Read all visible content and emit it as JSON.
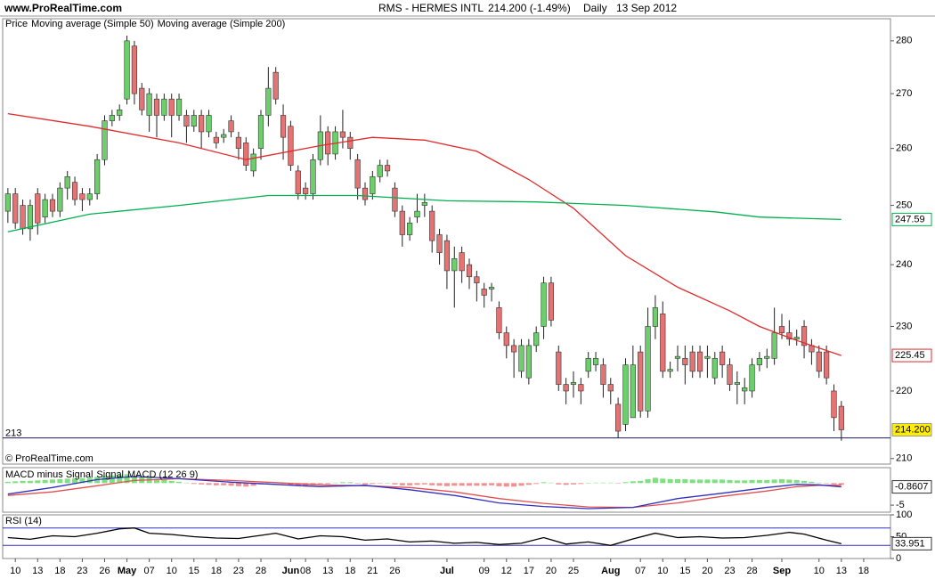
{
  "header": {
    "site": "www.ProRealTime.com",
    "copyright": "© ProRealTime.com"
  },
  "chart_data": [
    {
      "type": "candlestick",
      "title": "RMS - HERMES INTL",
      "subtitle": "214.200 (-1.49%)",
      "period": "Daily",
      "date": "13 Sep 2012",
      "xlim": [
        -0.7,
        118.6
      ],
      "xticks": [
        {
          "value": 1,
          "label": "10"
        },
        {
          "value": 4,
          "label": "13"
        },
        {
          "value": 7,
          "label": "18"
        },
        {
          "value": 10,
          "label": "23"
        },
        {
          "value": 13,
          "label": "26"
        },
        {
          "value": 16,
          "label": "May"
        },
        {
          "value": 19,
          "label": "07"
        },
        {
          "value": 22,
          "label": "10"
        },
        {
          "value": 25,
          "label": "15"
        },
        {
          "value": 28,
          "label": "18"
        },
        {
          "value": 31,
          "label": "23"
        },
        {
          "value": 34,
          "label": "28"
        },
        {
          "value": 38,
          "label": "Jun"
        },
        {
          "value": 40,
          "label": "08"
        },
        {
          "value": 43,
          "label": "13"
        },
        {
          "value": 46,
          "label": "18"
        },
        {
          "value": 49,
          "label": "21"
        },
        {
          "value": 52,
          "label": "26"
        },
        {
          "value": 59,
          "label": "Jul"
        },
        {
          "value": 64,
          "label": "09"
        },
        {
          "value": 67,
          "label": "12"
        },
        {
          "value": 70,
          "label": "17"
        },
        {
          "value": 73,
          "label": "20"
        },
        {
          "value": 76,
          "label": "25"
        },
        {
          "value": 81,
          "label": "Aug"
        },
        {
          "value": 85,
          "label": "07"
        },
        {
          "value": 88,
          "label": "10"
        },
        {
          "value": 91,
          "label": "15"
        },
        {
          "value": 94,
          "label": "20"
        },
        {
          "value": 97,
          "label": "23"
        },
        {
          "value": 100,
          "label": "28"
        },
        {
          "value": 104,
          "label": "Sep"
        },
        {
          "value": 109,
          "label": "10"
        },
        {
          "value": 112,
          "label": "13"
        },
        {
          "value": 115,
          "label": "18"
        }
      ],
      "ylim": [
        209.2,
        284.3
      ],
      "log_scale": true,
      "yticks": [
        210,
        220,
        230,
        240,
        250,
        260,
        270,
        280
      ],
      "hlines": [
        213
      ],
      "series": [
        {
          "name": "Price",
          "up_color": "#6ccf6c",
          "down_color": "#e57373",
          "last_label": "214.200",
          "last_box_color": "#ffee00",
          "open": [
            249,
            252,
            250,
            246,
            252,
            248,
            251,
            249,
            253,
            254,
            252,
            251,
            252,
            258,
            265,
            266,
            269,
            279,
            271,
            266,
            269,
            266,
            269,
            266,
            266,
            264,
            266,
            263,
            262,
            262,
            265,
            262,
            261,
            256,
            260,
            266,
            274,
            266,
            264,
            256,
            253,
            252,
            258,
            263,
            259,
            263,
            262,
            258,
            253,
            252,
            255,
            257,
            253,
            249,
            245,
            248,
            250,
            249,
            245,
            244,
            239,
            242,
            240,
            238,
            236,
            236,
            233,
            229,
            227,
            223,
            222,
            227,
            230,
            237,
            226,
            221,
            221,
            221,
            223,
            224,
            224,
            221,
            218,
            215,
            216,
            226,
            217,
            230,
            232,
            223,
            225,
            225,
            226,
            226,
            225,
            222,
            226,
            224,
            221,
            220,
            220,
            224,
            225,
            225,
            230,
            229,
            228,
            230,
            227,
            226,
            226,
            220,
            217.7
          ],
          "high": [
            253,
            253,
            251,
            251,
            253,
            252,
            252,
            254,
            256,
            255,
            253,
            253,
            259,
            266,
            267,
            268,
            281,
            280,
            272,
            271,
            270,
            270,
            270,
            270,
            267,
            267,
            267,
            267,
            263,
            263.5,
            266,
            263,
            262,
            260,
            267,
            275,
            275,
            268,
            265,
            257,
            254,
            259,
            266,
            264,
            264,
            267,
            263,
            259,
            254,
            256,
            258,
            258,
            254,
            250,
            248,
            252,
            252,
            250,
            246,
            245,
            243,
            243,
            241,
            239,
            237,
            237,
            234,
            230,
            228,
            228,
            228,
            230,
            238,
            238,
            227,
            222,
            223,
            222,
            226,
            226,
            225,
            222,
            219,
            225,
            227,
            227,
            233,
            235,
            234,
            224.5,
            227,
            227,
            227,
            227,
            227,
            226,
            227,
            225,
            223,
            222,
            225,
            226,
            226.5,
            233,
            232,
            231,
            229.5,
            231,
            228,
            227,
            227,
            221,
            218.5
          ],
          "low": [
            247,
            246,
            245,
            244,
            245,
            247,
            248,
            248,
            251,
            250,
            249,
            250,
            251,
            257,
            264,
            265,
            268,
            268,
            266,
            263,
            262,
            265,
            262,
            265,
            261,
            263,
            260,
            262,
            260,
            261,
            262,
            258,
            256,
            255,
            258,
            264,
            268,
            258,
            256,
            251,
            251,
            251,
            257,
            257,
            258,
            260,
            258,
            251,
            250,
            251,
            254,
            255,
            248,
            243,
            244,
            247,
            248,
            242,
            240,
            236,
            233,
            237,
            236,
            234,
            233,
            234,
            228,
            225,
            222,
            222,
            221,
            226,
            228,
            230,
            220,
            218,
            219,
            218,
            222,
            223,
            219,
            218,
            213,
            214,
            216,
            216,
            216,
            228,
            222,
            222,
            223,
            221,
            222,
            222,
            222,
            221,
            222,
            220,
            218,
            218,
            219,
            223,
            223.5,
            224,
            228,
            227,
            227,
            225,
            224,
            222,
            221,
            214,
            212.6
          ],
          "close": [
            252,
            247,
            246,
            250,
            247,
            251,
            249,
            253,
            255,
            251,
            251,
            252,
            258,
            265,
            266,
            267,
            280,
            270,
            267,
            270,
            266,
            269,
            266,
            269,
            264,
            266,
            263,
            266,
            261,
            262.5,
            263,
            260,
            257,
            259,
            266,
            271,
            269,
            262,
            257,
            252,
            252,
            258,
            263,
            259,
            263,
            262,
            260,
            253,
            251,
            255,
            257,
            256,
            249,
            245,
            247,
            249,
            250.5,
            244,
            242,
            239,
            241,
            239,
            238,
            237,
            235,
            236.3,
            229,
            227,
            226,
            227,
            227,
            229,
            237,
            231,
            221,
            220,
            221.3,
            220,
            225,
            225,
            221,
            220,
            214,
            224,
            224,
            217,
            230,
            233,
            223,
            223.3,
            225.3,
            224,
            223,
            223,
            225.3,
            225,
            224,
            221,
            221.3,
            220.5,
            224,
            225,
            225.3,
            229,
            229,
            228,
            228.3,
            227,
            226,
            223,
            222,
            216,
            214.2
          ]
        },
        {
          "name": "Moving average (Simple 50)",
          "color": "#e02a2a",
          "last_box": true,
          "x": [
            0,
            11,
            23,
            32,
            42,
            49,
            56,
            63,
            70,
            76,
            83,
            90,
            97,
            101,
            106,
            112
          ],
          "values": [
            266.3,
            264,
            261,
            258,
            260.5,
            262,
            261.5,
            259.5,
            254.5,
            249.5,
            241.5,
            236.3,
            232.5,
            230,
            227.8,
            225.45
          ]
        },
        {
          "name": "Moving average (Simple 200)",
          "color": "#00b050",
          "last_box": true,
          "x": [
            0,
            11,
            23,
            35,
            47,
            59,
            71,
            83,
            95,
            101,
            112
          ],
          "values": [
            245.5,
            248.5,
            250,
            251.7,
            251.7,
            250.8,
            250.6,
            250,
            248.9,
            248,
            247.59
          ]
        }
      ]
    },
    {
      "type": "macd",
      "ylim": [
        -6.6,
        3.5
      ],
      "yticks": [
        -5
      ],
      "series": [
        {
          "name": "MACD minus Signal",
          "type": "bar",
          "color": "#e07070",
          "up_color": "#7ee07e",
          "down_color": "#f09090",
          "values": [
            0.3,
            0.4,
            0.5,
            0.5,
            0.6,
            0.7,
            0.8,
            0.9,
            1.0,
            1.1,
            1.1,
            1.2,
            1.4,
            1.6,
            1.7,
            1.8,
            2.0,
            1.6,
            1.3,
            1.2,
            0.9,
            0.8,
            0.5,
            0.3,
            0.1,
            -0.2,
            -0.3,
            -0.4,
            -0.5,
            -0.5,
            -0.6,
            -0.7,
            -0.8,
            -0.6,
            -0.3,
            0.1,
            0.2,
            -0.1,
            -0.4,
            -0.7,
            -0.8,
            -0.5,
            -0.2,
            -0.2,
            0.1,
            0.2,
            0.2,
            -0.1,
            -0.3,
            -0.2,
            -0.1,
            0,
            -0.3,
            -0.5,
            -0.5,
            -0.4,
            -0.3,
            -0.5,
            -0.6,
            -0.7,
            -0.6,
            -0.6,
            -0.6,
            -0.6,
            -0.6,
            -0.5,
            -0.7,
            -0.8,
            -0.8,
            -0.6,
            -0.4,
            -0.2,
            0.2,
            0.1,
            -0.3,
            -0.4,
            -0.3,
            -0.2,
            0,
            0.1,
            0.1,
            0.1,
            -0.1,
            0.2,
            0.4,
            0.5,
            0.9,
            1.2,
            1.0,
            0.9,
            0.9,
            0.9,
            0.8,
            0.8,
            0.8,
            0.8,
            0.8,
            0.7,
            0.6,
            0.6,
            0.7,
            0.7,
            0.7,
            0.8,
            0.9,
            0.8,
            0.7,
            0.5,
            0.3,
            0.1,
            -0.1,
            -0.3,
            -0.4
          ]
        },
        {
          "name": "Signal",
          "type": "line",
          "color": "#e05050",
          "x": [
            0,
            6,
            12,
            17,
            23,
            30,
            36,
            42,
            48,
            54,
            60,
            66,
            72,
            78,
            84,
            90,
            96,
            102,
            106,
            109,
            112
          ],
          "values": [
            -2.8,
            -2.0,
            -0.6,
            0.6,
            1.0,
            0.6,
            0.1,
            -0.4,
            -0.6,
            -1.0,
            -2.0,
            -3.5,
            -4.6,
            -5.4,
            -5.5,
            -4.5,
            -3.0,
            -1.8,
            -0.8,
            -0.5,
            -0.5
          ]
        },
        {
          "name": "MACD (12 26 9)",
          "type": "line",
          "color": "#3030c0",
          "last_box": true,
          "x": [
            0,
            6,
            12,
            17,
            23,
            30,
            36,
            42,
            48,
            54,
            60,
            66,
            72,
            78,
            84,
            90,
            96,
            102,
            106,
            109,
            112
          ],
          "values": [
            -2.5,
            -1.0,
            0.8,
            1.5,
            1.0,
            0.2,
            -0.3,
            -0.8,
            -0.5,
            -1.5,
            -2.8,
            -4.5,
            -5.3,
            -5.8,
            -5.5,
            -3.5,
            -2.3,
            -1.0,
            -0.3,
            -0.4,
            -0.8607
          ]
        }
      ]
    },
    {
      "type": "line",
      "title": "RSI (14)",
      "ylim": [
        0,
        100
      ],
      "yticks": [
        0,
        50,
        100
      ],
      "hlines": [
        30,
        70
      ],
      "hline_color": "#3030c0",
      "series": [
        {
          "color": "#000000",
          "last_box": true,
          "x": [
            0,
            3,
            6,
            9,
            12,
            15,
            17,
            19,
            22,
            25,
            28,
            31,
            34,
            36,
            39,
            42,
            45,
            48,
            51,
            54,
            57,
            60,
            63,
            66,
            69,
            72,
            75,
            78,
            81,
            84,
            87,
            90,
            93,
            96,
            99,
            102,
            105,
            107,
            110,
            112
          ],
          "values": [
            48,
            44,
            52,
            50,
            58,
            68,
            70,
            58,
            55,
            50,
            47,
            46,
            53,
            58,
            45,
            52,
            50,
            42,
            45,
            38,
            40,
            35,
            37,
            32,
            35,
            48,
            33,
            38,
            30,
            45,
            58,
            48,
            50,
            47,
            48,
            53,
            60,
            56,
            42,
            33.951
          ]
        }
      ]
    }
  ]
}
